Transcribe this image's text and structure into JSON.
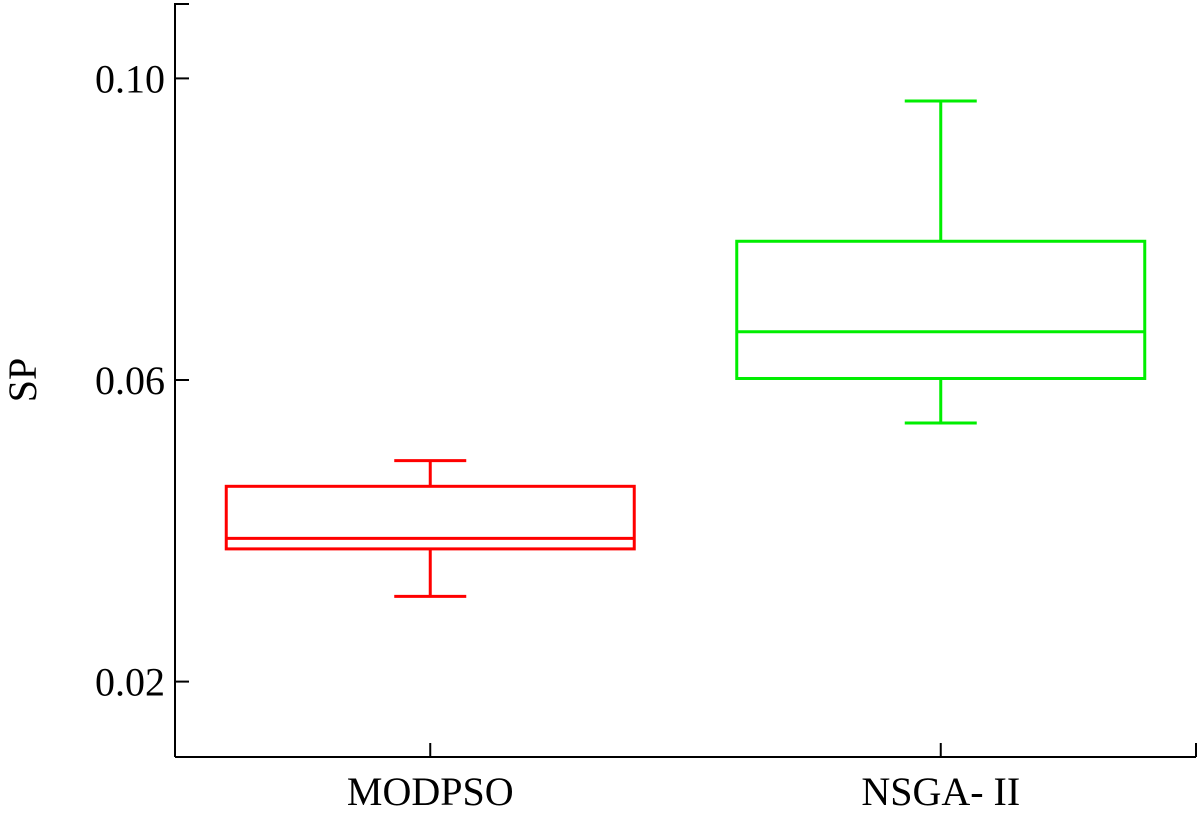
{
  "chart_data": {
    "type": "box",
    "title": "",
    "xlabel": "",
    "ylabel": "SP",
    "ylim": [
      0.01,
      0.11
    ],
    "yticks": [
      {
        "value": 0.02,
        "label": "0.02"
      },
      {
        "value": 0.06,
        "label": "0.06"
      },
      {
        "value": 0.1,
        "label": "0.10"
      }
    ],
    "categories": [
      "MODPSO",
      "NSGA- II"
    ],
    "boxes": [
      {
        "category": "MODPSO",
        "color": "#ff0000",
        "whisker_low": 0.0313,
        "q1": 0.0376,
        "median": 0.039,
        "q3": 0.0459,
        "whisker_high": 0.0493
      },
      {
        "category": "NSGA- II",
        "color": "#00ee00",
        "whisker_low": 0.0543,
        "q1": 0.0602,
        "median": 0.0664,
        "q3": 0.0784,
        "whisker_high": 0.097
      }
    ],
    "grid": false,
    "legend": "none"
  }
}
